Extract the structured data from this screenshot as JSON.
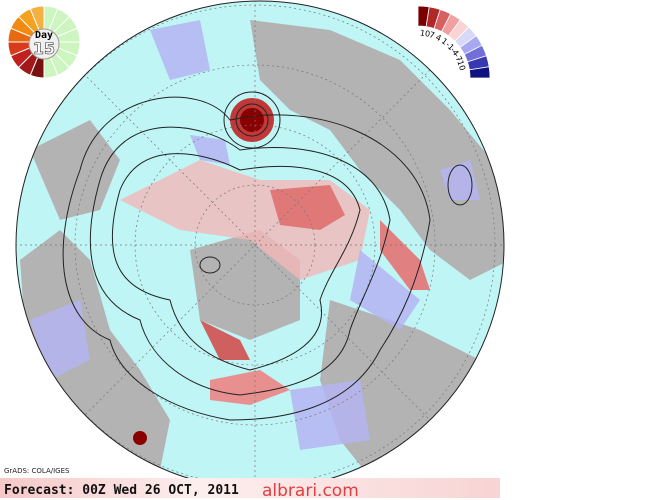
{
  "header": {
    "day_label": "Day",
    "day_number": "15"
  },
  "legend": {
    "labels": [
      "10",
      "7",
      "4",
      "1",
      "-1",
      "-4",
      "-7",
      "-10"
    ]
  },
  "footer": {
    "credit": "GrADS: COLA/IGES",
    "forecast": "Forecast: 00Z Wed 26 OCT, 2011",
    "watermark": "albrari.com"
  }
}
